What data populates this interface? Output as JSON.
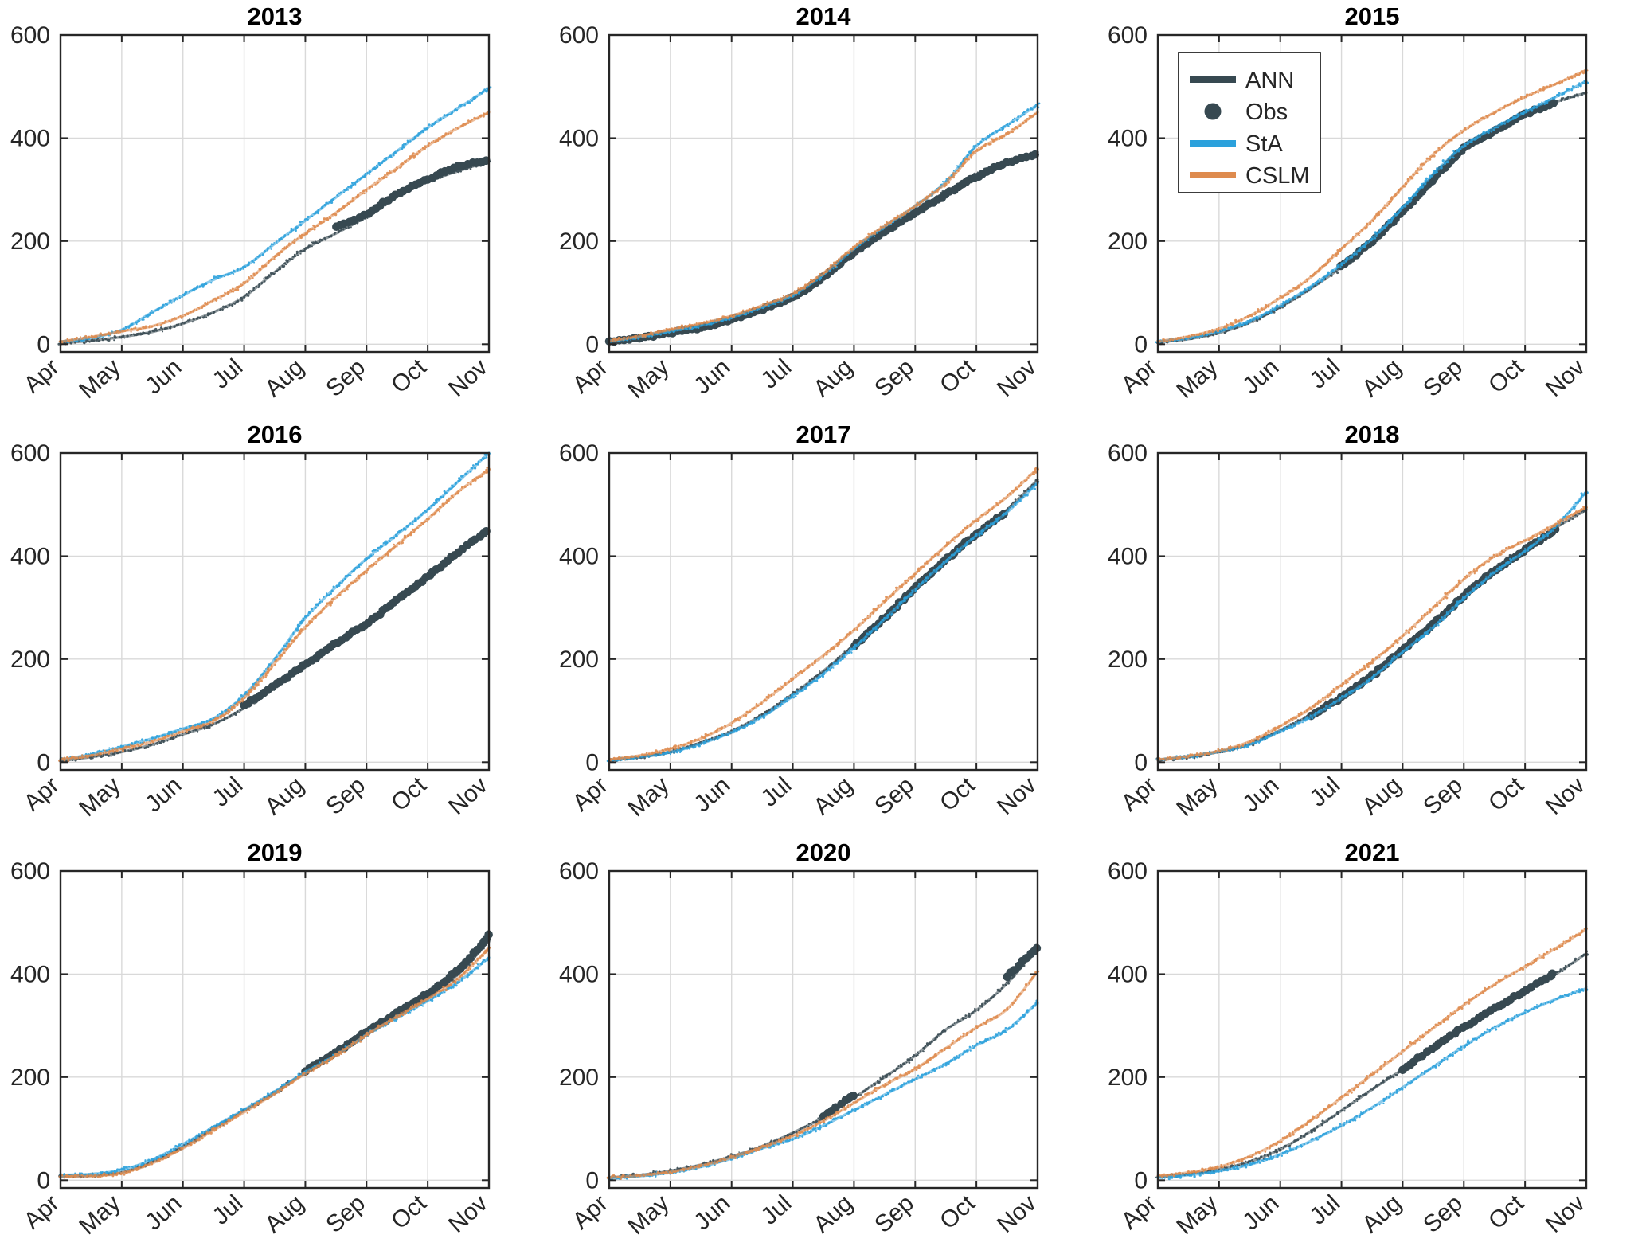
{
  "figure": {
    "background": "#ffffff",
    "rows": 3,
    "cols": 3
  },
  "colors": {
    "ANN": "#374951",
    "Obs": "#374951",
    "StA": "#2ba1dc",
    "CSLM": "#de8b4e",
    "grid": "#d9d9d9",
    "axis": "#262626",
    "tick_label": "#262626",
    "legend_border": "#262626",
    "legend_bg": "#ffffff"
  },
  "legend": {
    "location": "upper-left of 2015 subplot",
    "entries": [
      {
        "label": "ANN",
        "swatch": "line",
        "color_key": "ANN"
      },
      {
        "label": "Obs",
        "swatch": "dot",
        "color_key": "Obs"
      },
      {
        "label": "StA",
        "swatch": "line",
        "color_key": "StA"
      },
      {
        "label": "CSLM",
        "swatch": "line",
        "color_key": "CSLM"
      }
    ]
  },
  "chart_data": {
    "type": "line",
    "style": "speckled cumulative curves, MATLAB-like 3x3 subplot grid",
    "x_tick_labels": [
      "Apr",
      "May",
      "Jun",
      "Jul",
      "Aug",
      "Sep",
      "Oct",
      "Nov"
    ],
    "x_tick_rotation_deg": -42,
    "x_step_months": 0.5,
    "x_note": "each series has 15 samples: Apr1, Apr15, May1 ... Nov1",
    "ylim": [
      -15,
      600
    ],
    "y_ticks": [
      0,
      200,
      400,
      600
    ],
    "grid": true,
    "subplots": [
      {
        "title": "2013",
        "series": {
          "ANN": [
            2,
            7,
            14,
            24,
            40,
            62,
            92,
            140,
            185,
            215,
            248,
            288,
            316,
            336,
            355
          ],
          "StA": [
            5,
            12,
            28,
            62,
            95,
            125,
            150,
            195,
            240,
            285,
            330,
            375,
            420,
            458,
            497
          ],
          "CSLM": [
            5,
            14,
            25,
            35,
            55,
            85,
            118,
            170,
            215,
            255,
            300,
            342,
            385,
            420,
            450
          ],
          "Obs": [
            null,
            null,
            null,
            null,
            null,
            null,
            null,
            null,
            null,
            228,
            252,
            292,
            320,
            345,
            357
          ]
        }
      },
      {
        "title": "2014",
        "series": {
          "ANN": [
            4,
            12,
            22,
            32,
            48,
            68,
            92,
            130,
            180,
            220,
            258,
            295,
            330,
            350,
            373
          ],
          "StA": [
            5,
            14,
            25,
            36,
            52,
            72,
            95,
            135,
            185,
            228,
            268,
            315,
            385,
            425,
            465
          ],
          "CSLM": [
            6,
            16,
            28,
            40,
            55,
            75,
            98,
            138,
            188,
            230,
            268,
            312,
            375,
            408,
            450
          ],
          "Obs": [
            5,
            12,
            22,
            32,
            48,
            68,
            92,
            130,
            178,
            218,
            255,
            290,
            325,
            352,
            370
          ]
        }
      },
      {
        "title": "2015",
        "has_legend": true,
        "series": {
          "ANN": [
            4,
            10,
            22,
            42,
            72,
            108,
            150,
            200,
            262,
            325,
            382,
            415,
            445,
            470,
            488
          ],
          "StA": [
            5,
            12,
            25,
            45,
            75,
            112,
            155,
            205,
            265,
            330,
            385,
            420,
            450,
            480,
            510
          ],
          "CSLM": [
            5,
            15,
            30,
            55,
            90,
            130,
            185,
            240,
            305,
            368,
            415,
            450,
            480,
            505,
            532
          ],
          "Obs": [
            null,
            null,
            null,
            null,
            null,
            null,
            152,
            200,
            258,
            320,
            380,
            413,
            446,
            468,
            null
          ]
        }
      },
      {
        "title": "2016",
        "series": {
          "ANN": [
            3,
            10,
            20,
            34,
            54,
            74,
            105,
            145,
            188,
            228,
            268,
            312,
            357,
            405,
            450
          ],
          "StA": [
            5,
            15,
            30,
            46,
            65,
            85,
            130,
            200,
            280,
            340,
            395,
            442,
            490,
            545,
            600
          ],
          "CSLM": [
            5,
            13,
            26,
            40,
            60,
            80,
            125,
            192,
            262,
            320,
            372,
            422,
            472,
            525,
            568
          ],
          "Obs": [
            null,
            null,
            null,
            null,
            null,
            null,
            110,
            148,
            190,
            230,
            270,
            315,
            360,
            408,
            452
          ]
        }
      },
      {
        "title": "2017",
        "series": {
          "ANN": [
            4,
            10,
            20,
            38,
            60,
            92,
            132,
            177,
            227,
            282,
            340,
            395,
            445,
            490,
            548
          ],
          "StA": [
            4,
            10,
            19,
            36,
            58,
            88,
            128,
            172,
            222,
            278,
            335,
            390,
            440,
            485,
            542
          ],
          "CSLM": [
            5,
            13,
            26,
            46,
            76,
            116,
            162,
            207,
            256,
            312,
            366,
            420,
            470,
            515,
            570
          ],
          "Obs": [
            null,
            null,
            null,
            null,
            null,
            null,
            null,
            null,
            225,
            280,
            338,
            392,
            442,
            486,
            null
          ]
        }
      },
      {
        "title": "2018",
        "series": {
          "ANN": [
            4,
            10,
            20,
            35,
            62,
            92,
            128,
            170,
            220,
            270,
            325,
            375,
            415,
            455,
            490
          ],
          "StA": [
            5,
            11,
            21,
            34,
            60,
            88,
            124,
            164,
            214,
            262,
            318,
            368,
            410,
            457,
            525
          ],
          "CSLM": [
            5,
            12,
            22,
            40,
            70,
            105,
            150,
            195,
            245,
            300,
            355,
            400,
            430,
            462,
            495
          ],
          "Obs": [
            null,
            null,
            null,
            null,
            null,
            90,
            126,
            168,
            218,
            268,
            322,
            372,
            412,
            452,
            null
          ]
        }
      },
      {
        "title": "2019",
        "series": {
          "ANN": [
            8,
            9,
            15,
            35,
            65,
            100,
            135,
            170,
            210,
            245,
            285,
            322,
            358,
            400,
            465
          ],
          "StA": [
            10,
            12,
            20,
            40,
            70,
            103,
            137,
            172,
            210,
            243,
            282,
            316,
            348,
            385,
            432
          ],
          "CSLM": [
            7,
            8,
            14,
            33,
            62,
            97,
            132,
            168,
            207,
            242,
            282,
            318,
            352,
            392,
            450
          ],
          "Obs": [
            null,
            null,
            null,
            null,
            null,
            null,
            null,
            null,
            212,
            248,
            288,
            325,
            362,
            408,
            475
          ]
        }
      },
      {
        "title": "2020",
        "series": {
          "ANN": [
            5,
            10,
            18,
            30,
            46,
            66,
            92,
            122,
            160,
            200,
            242,
            292,
            330,
            382,
            452
          ],
          "StA": [
            4,
            8,
            15,
            26,
            42,
            62,
            80,
            106,
            136,
            166,
            196,
            226,
            262,
            292,
            345
          ],
          "CSLM": [
            5,
            9,
            16,
            28,
            44,
            64,
            86,
            115,
            150,
            185,
            216,
            256,
            296,
            332,
            405
          ],
          "Obs": [
            null,
            null,
            null,
            null,
            null,
            null,
            null,
            125,
            165,
            null,
            null,
            null,
            null,
            395,
            452
          ]
        }
      },
      {
        "title": "2021",
        "series": {
          "ANN": [
            6,
            12,
            21,
            36,
            60,
            95,
            135,
            176,
            215,
            255,
            295,
            331,
            365,
            400,
            440
          ],
          "StA": [
            5,
            10,
            18,
            30,
            50,
            76,
            106,
            141,
            180,
            220,
            260,
            296,
            326,
            351,
            372
          ],
          "CSLM": [
            8,
            15,
            26,
            46,
            76,
            116,
            160,
            205,
            250,
            295,
            340,
            380,
            415,
            450,
            487
          ],
          "Obs": [
            null,
            null,
            null,
            null,
            null,
            null,
            null,
            null,
            215,
            257,
            297,
            333,
            367,
            403,
            null
          ]
        }
      }
    ]
  }
}
